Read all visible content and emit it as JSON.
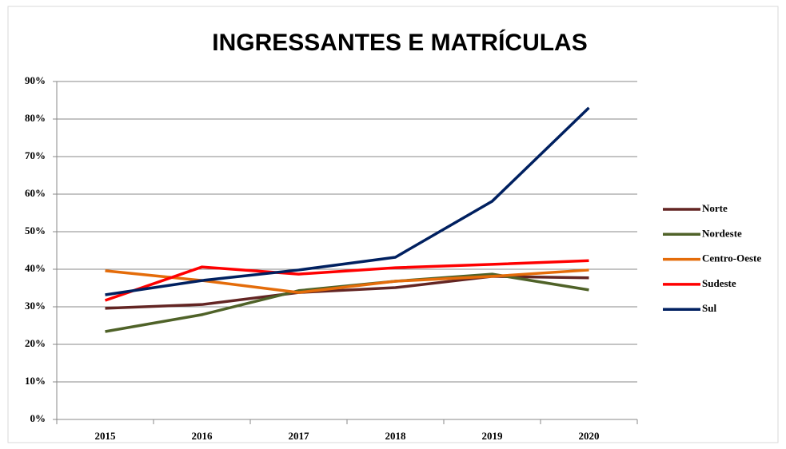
{
  "chart_data": {
    "type": "line",
    "title": "INGRESSANTES E MATRÍCULAS",
    "categories": [
      "2015",
      "2016",
      "2017",
      "2018",
      "2019",
      "2020"
    ],
    "series": [
      {
        "name": "Norte",
        "color": "#632523",
        "values": [
          29.6,
          30.6,
          33.8,
          35.1,
          38.1,
          37.7
        ]
      },
      {
        "name": "Nordeste",
        "color": "#4f6228",
        "values": [
          23.4,
          27.9,
          34.3,
          36.8,
          38.7,
          34.5
        ]
      },
      {
        "name": "Centro-Oeste",
        "color": "#e46c0a",
        "values": [
          39.6,
          37.0,
          33.8,
          36.8,
          38.1,
          39.8
        ]
      },
      {
        "name": "Sudeste",
        "color": "#ff0000",
        "values": [
          31.7,
          40.6,
          38.7,
          40.4,
          41.3,
          42.3
        ]
      },
      {
        "name": "Sul",
        "color": "#002060",
        "values": [
          33.2,
          37.0,
          39.8,
          43.2,
          58.1,
          83.0
        ]
      }
    ],
    "ylim": [
      0,
      90
    ],
    "yticks": [
      {
        "value": 0,
        "label": "0%"
      },
      {
        "value": 10,
        "label": "10%"
      },
      {
        "value": 20,
        "label": "20%"
      },
      {
        "value": 30,
        "label": "30%"
      },
      {
        "value": 40,
        "label": "40%"
      },
      {
        "value": 50,
        "label": "50%"
      },
      {
        "value": 60,
        "label": "60%"
      },
      {
        "value": 70,
        "label": "70%"
      },
      {
        "value": 80,
        "label": "80%"
      },
      {
        "value": 90,
        "label": "90%"
      }
    ],
    "grid": true,
    "legend": "right"
  }
}
